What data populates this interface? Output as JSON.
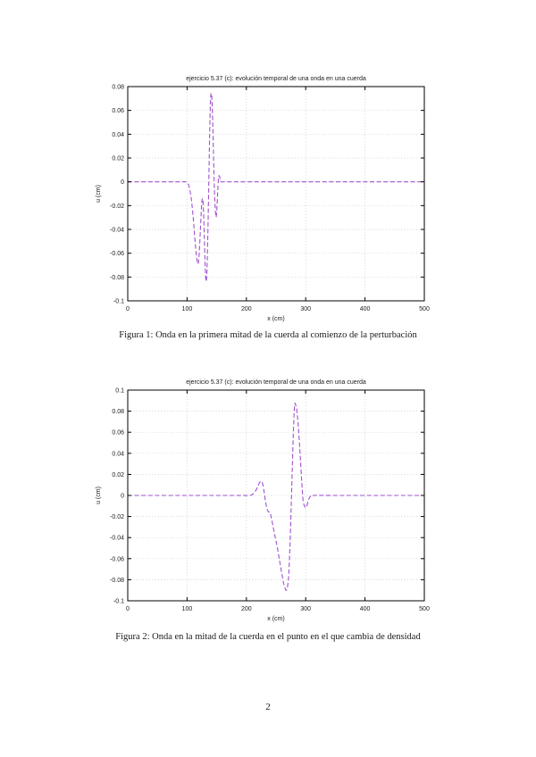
{
  "page": {
    "number": "2"
  },
  "figures": [
    {
      "caption": "Figura 1: Onda en la primera mitad de la cuerda al comienzo de la perturbación"
    },
    {
      "caption": "Figura 2: Onda en la mitad de la cuerda en el punto en el que cambia de densidad"
    }
  ],
  "colors": {
    "curve": "#a050d0",
    "grid": "#c6c6c6",
    "frame": "#000000",
    "text": "#1a1a1a"
  },
  "chart_data": [
    {
      "type": "line",
      "title": "ejercicio 5.37 (c): evolución temporal de una onda en una cuerda",
      "xlabel": "x (cm)",
      "ylabel": "u (cm)",
      "xlim": [
        0,
        500
      ],
      "ylim": [
        -0.1,
        0.08
      ],
      "xticks": {
        "values": [
          0,
          100,
          200,
          300,
          400,
          500
        ],
        "labels": [
          "0",
          "100",
          "200",
          "300",
          "400",
          "500"
        ]
      },
      "yticks": {
        "values": [
          0.08,
          0.06,
          0.04,
          0.02,
          0,
          -0.02,
          -0.04,
          -0.06,
          -0.08,
          -0.1
        ],
        "labels": [
          "0.08",
          "0.06",
          "0.04",
          "0.02",
          "0",
          "-0.02",
          "-0.04",
          "-0.06",
          "-0.08",
          "-0.1"
        ]
      },
      "grid": true,
      "legend": "none",
      "line_style": "dashed",
      "line_color": "#a050d0",
      "points": [
        [
          0,
          0
        ],
        [
          60,
          0
        ],
        [
          90,
          0
        ],
        [
          97,
          0
        ],
        [
          101,
          -0.001
        ],
        [
          104,
          -0.005
        ],
        [
          107,
          -0.014
        ],
        [
          110,
          -0.028
        ],
        [
          113,
          -0.047
        ],
        [
          116,
          -0.063
        ],
        [
          118.5,
          -0.069
        ],
        [
          120.5,
          -0.06
        ],
        [
          122.5,
          -0.04
        ],
        [
          124.5,
          -0.02
        ],
        [
          126,
          -0.014
        ],
        [
          127.5,
          -0.022
        ],
        [
          129,
          -0.045
        ],
        [
          130.5,
          -0.07
        ],
        [
          132,
          -0.0835
        ],
        [
          133.5,
          -0.075
        ],
        [
          135,
          -0.045
        ],
        [
          136.5,
          -0.005
        ],
        [
          138,
          0.038
        ],
        [
          139.5,
          0.068
        ],
        [
          140.8,
          0.0745
        ],
        [
          142,
          0.068
        ],
        [
          143.5,
          0.045
        ],
        [
          145,
          0.014
        ],
        [
          146.5,
          -0.012
        ],
        [
          148.5,
          -0.029
        ],
        [
          150,
          -0.025
        ],
        [
          151.5,
          -0.01
        ],
        [
          153,
          0.003
        ],
        [
          154.5,
          0.005
        ],
        [
          156,
          0.002
        ],
        [
          158,
          0
        ],
        [
          170,
          0
        ],
        [
          250,
          0
        ],
        [
          400,
          0
        ],
        [
          500,
          0
        ]
      ]
    },
    {
      "type": "line",
      "title": "ejercicio 5.37 (c): evolución temporal de una onda en una cuerda",
      "xlabel": "x (cm)",
      "ylabel": "u (cm)",
      "xlim": [
        0,
        500
      ],
      "ylim": [
        -0.1,
        0.1
      ],
      "xticks": {
        "values": [
          0,
          100,
          200,
          300,
          400,
          500
        ],
        "labels": [
          "0",
          "100",
          "200",
          "300",
          "400",
          "500"
        ]
      },
      "yticks": {
        "values": [
          0.1,
          0.08,
          0.06,
          0.04,
          0.02,
          0,
          -0.02,
          -0.04,
          -0.06,
          -0.08,
          -0.1
        ],
        "labels": [
          "0.1",
          "0.08",
          "0.06",
          "0.04",
          "0.02",
          "0",
          "-0.02",
          "-0.04",
          "-0.06",
          "-0.08",
          "-0.1"
        ]
      },
      "grid": true,
      "legend": "none",
      "line_style": "dashed",
      "line_color": "#a050d0",
      "points": [
        [
          0,
          0
        ],
        [
          100,
          0
        ],
        [
          180,
          0
        ],
        [
          205,
          0
        ],
        [
          210,
          0.001
        ],
        [
          215,
          0.004
        ],
        [
          219,
          0.008
        ],
        [
          222,
          0.012
        ],
        [
          225,
          0.0135
        ],
        [
          227.5,
          0.011
        ],
        [
          230,
          0.003
        ],
        [
          232,
          -0.005
        ],
        [
          234.5,
          -0.012
        ],
        [
          237,
          -0.0155
        ],
        [
          239.5,
          -0.016
        ],
        [
          242,
          -0.021
        ],
        [
          244.5,
          -0.028
        ],
        [
          248,
          -0.038
        ],
        [
          252,
          -0.049
        ],
        [
          256,
          -0.062
        ],
        [
          260,
          -0.075
        ],
        [
          263,
          -0.084
        ],
        [
          265.5,
          -0.0885
        ],
        [
          267.5,
          -0.09
        ],
        [
          269.5,
          -0.086
        ],
        [
          271.5,
          -0.074
        ],
        [
          273.5,
          -0.048
        ],
        [
          275.5,
          -0.012
        ],
        [
          277.5,
          0.028
        ],
        [
          279.5,
          0.064
        ],
        [
          281,
          0.084
        ],
        [
          282,
          0.0875
        ],
        [
          283.5,
          0.085
        ],
        [
          285.5,
          0.0785
        ],
        [
          288,
          0.062
        ],
        [
          290.5,
          0.04
        ],
        [
          293,
          0.016
        ],
        [
          295.5,
          -0.004
        ],
        [
          298,
          -0.01
        ],
        [
          300.5,
          -0.0115
        ],
        [
          303,
          -0.008
        ],
        [
          305.5,
          -0.003
        ],
        [
          308,
          -0.001
        ],
        [
          312,
          0
        ],
        [
          350,
          0
        ],
        [
          420,
          0
        ],
        [
          500,
          0
        ]
      ]
    }
  ]
}
